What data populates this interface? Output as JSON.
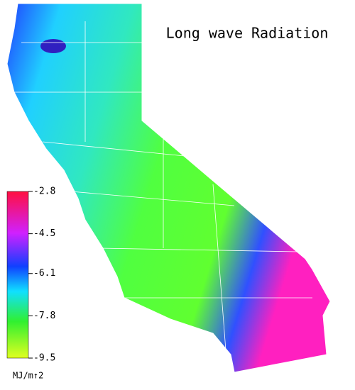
{
  "title": "Long wave Radiation",
  "colorbar": {
    "lim": [
      -9.5,
      -2.8
    ],
    "ticks": [
      -2.8,
      -4.5,
      -6.1,
      -7.8,
      -9.5
    ],
    "unit": "MJ/m↑2"
  }
}
